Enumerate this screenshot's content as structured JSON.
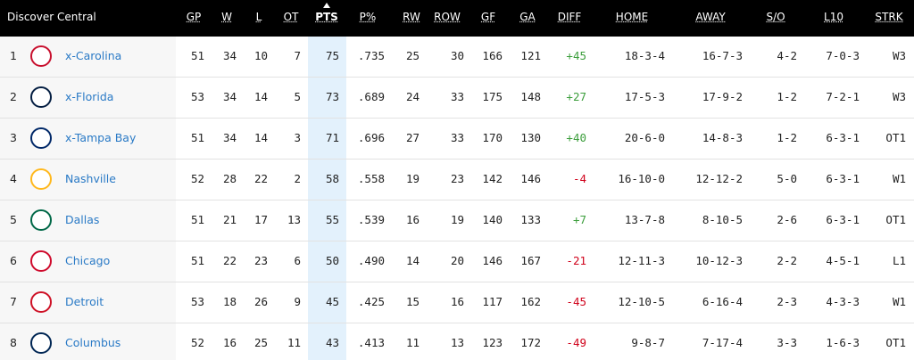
{
  "header": {
    "title": "Discover Central",
    "columns": [
      "GP",
      "W",
      "L",
      "OT",
      "PTS",
      "P%",
      "RW",
      "ROW",
      "GF",
      "GA",
      "DIFF",
      "HOME",
      "AWAY",
      "S/O",
      "L10",
      "STRK"
    ]
  },
  "table": {
    "rows": [
      [
        "1",
        "x-Carolina",
        "51",
        "34",
        "10",
        "7",
        "75",
        ".735",
        "25",
        "30",
        "166",
        "121",
        "+45",
        "18-3-4",
        "16-7-3",
        "4-2",
        "7-0-3",
        "W3"
      ],
      [
        "2",
        "x-Florida",
        "53",
        "34",
        "14",
        "5",
        "73",
        ".689",
        "24",
        "33",
        "175",
        "148",
        "+27",
        "17-5-3",
        "17-9-2",
        "1-2",
        "7-2-1",
        "W3"
      ],
      [
        "3",
        "x-Tampa Bay",
        "51",
        "34",
        "14",
        "3",
        "71",
        ".696",
        "27",
        "33",
        "170",
        "130",
        "+40",
        "20-6-0",
        "14-8-3",
        "1-2",
        "6-3-1",
        "OT1"
      ],
      [
        "4",
        "Nashville",
        "52",
        "28",
        "22",
        "2",
        "58",
        ".558",
        "19",
        "23",
        "142",
        "146",
        "-4",
        "16-10-0",
        "12-12-2",
        "5-0",
        "6-3-1",
        "W1"
      ],
      [
        "5",
        "Dallas",
        "51",
        "21",
        "17",
        "13",
        "55",
        ".539",
        "16",
        "19",
        "140",
        "133",
        "+7",
        "13-7-8",
        "8-10-5",
        "2-6",
        "6-3-1",
        "OT1"
      ],
      [
        "6",
        "Chicago",
        "51",
        "22",
        "23",
        "6",
        "50",
        ".490",
        "14",
        "20",
        "146",
        "167",
        "-21",
        "12-11-3",
        "10-12-3",
        "2-2",
        "4-5-1",
        "L1"
      ],
      [
        "7",
        "Detroit",
        "53",
        "18",
        "26",
        "9",
        "45",
        ".425",
        "15",
        "16",
        "117",
        "162",
        "-45",
        "12-10-5",
        "6-16-4",
        "2-3",
        "4-3-3",
        "W1"
      ],
      [
        "8",
        "Columbus",
        "52",
        "16",
        "25",
        "11",
        "43",
        ".413",
        "11",
        "13",
        "123",
        "172",
        "-49",
        "9-8-7",
        "7-17-4",
        "3-3",
        "1-6-3",
        "OT1"
      ]
    ]
  }
}
